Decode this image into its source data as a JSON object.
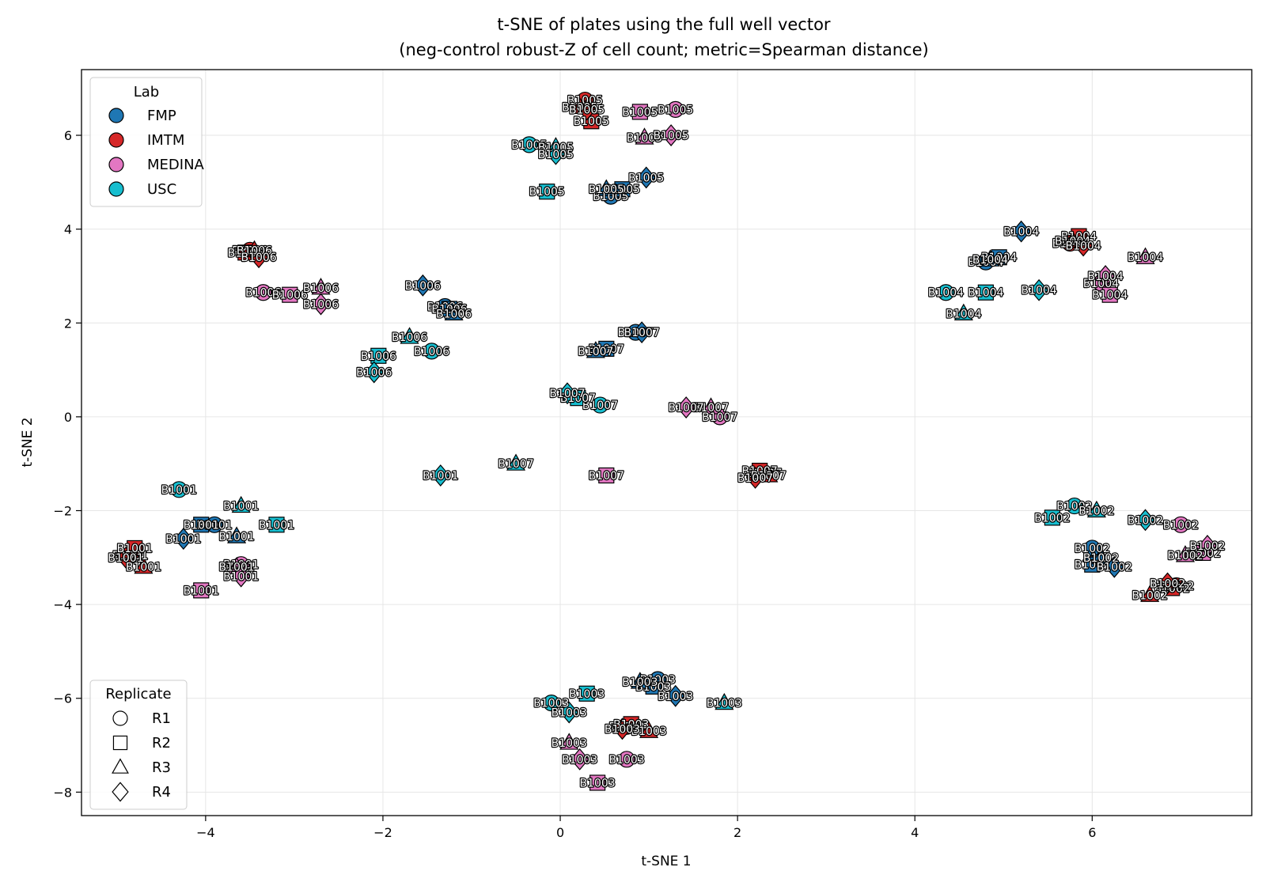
{
  "chart_data": {
    "type": "scatter",
    "title": "t-SNE of plates using the full well vector",
    "subtitle": "(neg-control robust-Z of cell count; metric=Spearman distance)",
    "xlabel": "t-SNE 1",
    "ylabel": "t-SNE 2",
    "xlim": [
      -5.4,
      7.8
    ],
    "ylim": [
      -8.5,
      7.4
    ],
    "xticks": [
      -4,
      -2,
      0,
      2,
      4,
      6
    ],
    "yticks": [
      -8,
      -6,
      -4,
      -2,
      0,
      2,
      4,
      6
    ],
    "grid": true,
    "lab_legend": {
      "title": "Lab",
      "placement": "upper-left",
      "entries": [
        {
          "name": "FMP",
          "color": "#1f77b4"
        },
        {
          "name": "IMTM",
          "color": "#d62728"
        },
        {
          "name": "MEDINA",
          "color": "#e377c2"
        },
        {
          "name": "USC",
          "color": "#17becf"
        }
      ]
    },
    "replicate_legend": {
      "title": "Replicate",
      "placement": "lower-left",
      "entries": [
        {
          "name": "R1",
          "marker": "circle"
        },
        {
          "name": "R2",
          "marker": "square"
        },
        {
          "name": "R3",
          "marker": "triangle"
        },
        {
          "name": "R4",
          "marker": "diamond"
        }
      ]
    },
    "points": [
      {
        "label": "B1005",
        "lab": "IMTM",
        "rep": "R1",
        "x": 0.28,
        "y": 6.75
      },
      {
        "label": "B1005",
        "lab": "IMTM",
        "rep": "R2",
        "x": 0.35,
        "y": 6.3
      },
      {
        "label": "B1005",
        "lab": "IMTM",
        "rep": "R3",
        "x": 0.22,
        "y": 6.6
      },
      {
        "label": "B1005",
        "lab": "IMTM",
        "rep": "R4",
        "x": 0.3,
        "y": 6.55
      },
      {
        "label": "B1005",
        "lab": "MEDINA",
        "rep": "R1",
        "x": 1.3,
        "y": 6.55
      },
      {
        "label": "B1005",
        "lab": "MEDINA",
        "rep": "R2",
        "x": 0.9,
        "y": 6.5
      },
      {
        "label": "B1005",
        "lab": "MEDINA",
        "rep": "R3",
        "x": 0.95,
        "y": 5.95
      },
      {
        "label": "B1005",
        "lab": "MEDINA",
        "rep": "R4",
        "x": 1.25,
        "y": 6.0
      },
      {
        "label": "B1005",
        "lab": "USC",
        "rep": "R1",
        "x": -0.35,
        "y": 5.8
      },
      {
        "label": "B1005",
        "lab": "USC",
        "rep": "R2",
        "x": -0.15,
        "y": 4.8
      },
      {
        "label": "B1005",
        "lab": "USC",
        "rep": "R3",
        "x": -0.05,
        "y": 5.75
      },
      {
        "label": "B1005",
        "lab": "USC",
        "rep": "R4",
        "x": -0.05,
        "y": 5.6
      },
      {
        "label": "B1005",
        "lab": "FMP",
        "rep": "R1",
        "x": 0.57,
        "y": 4.7
      },
      {
        "label": "B1005",
        "lab": "FMP",
        "rep": "R2",
        "x": 0.7,
        "y": 4.85
      },
      {
        "label": "B1005",
        "lab": "FMP",
        "rep": "R3",
        "x": 0.52,
        "y": 4.85
      },
      {
        "label": "B1005",
        "lab": "FMP",
        "rep": "R4",
        "x": 0.97,
        "y": 5.1
      },
      {
        "label": "B1004",
        "lab": "FMP",
        "rep": "R1",
        "x": 4.8,
        "y": 3.3
      },
      {
        "label": "B1004",
        "lab": "FMP",
        "rep": "R2",
        "x": 4.95,
        "y": 3.4
      },
      {
        "label": "B1004",
        "lab": "FMP",
        "rep": "R3",
        "x": 4.85,
        "y": 3.35
      },
      {
        "label": "B1004",
        "lab": "FMP",
        "rep": "R4",
        "x": 5.2,
        "y": 3.95
      },
      {
        "label": "B1004",
        "lab": "IMTM",
        "rep": "R1",
        "x": 5.75,
        "y": 3.7
      },
      {
        "label": "B1004",
        "lab": "IMTM",
        "rep": "R2",
        "x": 5.85,
        "y": 3.85
      },
      {
        "label": "B1004",
        "lab": "IMTM",
        "rep": "R3",
        "x": 5.78,
        "y": 3.75
      },
      {
        "label": "B1004",
        "lab": "IMTM",
        "rep": "R4",
        "x": 5.9,
        "y": 3.65
      },
      {
        "label": "B1004",
        "lab": "MEDINA",
        "rep": "R1",
        "x": 6.1,
        "y": 2.85
      },
      {
        "label": "B1004",
        "lab": "MEDINA",
        "rep": "R2",
        "x": 6.2,
        "y": 2.6
      },
      {
        "label": "B1004",
        "lab": "MEDINA",
        "rep": "R3",
        "x": 6.6,
        "y": 3.4
      },
      {
        "label": "B1004",
        "lab": "MEDINA",
        "rep": "R4",
        "x": 6.15,
        "y": 3.0
      },
      {
        "label": "B1004",
        "lab": "USC",
        "rep": "R1",
        "x": 4.35,
        "y": 2.65
      },
      {
        "label": "B1004",
        "lab": "USC",
        "rep": "R2",
        "x": 4.8,
        "y": 2.65
      },
      {
        "label": "B1004",
        "lab": "USC",
        "rep": "R3",
        "x": 4.55,
        "y": 2.2
      },
      {
        "label": "B1004",
        "lab": "USC",
        "rep": "R4",
        "x": 5.4,
        "y": 2.7
      },
      {
        "label": "B1006",
        "lab": "IMTM",
        "rep": "R1",
        "x": -3.5,
        "y": 3.55
      },
      {
        "label": "B1006",
        "lab": "IMTM",
        "rep": "R2",
        "x": -3.55,
        "y": 3.5
      },
      {
        "label": "B1006",
        "lab": "IMTM",
        "rep": "R3",
        "x": -3.45,
        "y": 3.55
      },
      {
        "label": "B1006",
        "lab": "IMTM",
        "rep": "R4",
        "x": -3.4,
        "y": 3.4
      },
      {
        "label": "B1006",
        "lab": "MEDINA",
        "rep": "R1",
        "x": -3.35,
        "y": 2.65
      },
      {
        "label": "B1006",
        "lab": "MEDINA",
        "rep": "R2",
        "x": -3.05,
        "y": 2.6
      },
      {
        "label": "B1006",
        "lab": "MEDINA",
        "rep": "R3",
        "x": -2.7,
        "y": 2.75
      },
      {
        "label": "B1006",
        "lab": "MEDINA",
        "rep": "R4",
        "x": -2.7,
        "y": 2.4
      },
      {
        "label": "B1006",
        "lab": "FMP",
        "rep": "R1",
        "x": -1.3,
        "y": 2.35
      },
      {
        "label": "B1006",
        "lab": "FMP",
        "rep": "R2",
        "x": -1.25,
        "y": 2.3
      },
      {
        "label": "B1006",
        "lab": "FMP",
        "rep": "R3",
        "x": -1.2,
        "y": 2.2
      },
      {
        "label": "B1006",
        "lab": "FMP",
        "rep": "R4",
        "x": -1.55,
        "y": 2.8
      },
      {
        "label": "B1006",
        "lab": "USC",
        "rep": "R1",
        "x": -1.45,
        "y": 1.4
      },
      {
        "label": "B1006",
        "lab": "USC",
        "rep": "R2",
        "x": -2.05,
        "y": 1.3
      },
      {
        "label": "B1006",
        "lab": "USC",
        "rep": "R3",
        "x": -1.7,
        "y": 1.7
      },
      {
        "label": "B1006",
        "lab": "USC",
        "rep": "R4",
        "x": -2.1,
        "y": 0.95
      },
      {
        "label": "B1007",
        "lab": "FMP",
        "rep": "R1",
        "x": 0.85,
        "y": 1.8
      },
      {
        "label": "B1007",
        "lab": "FMP",
        "rep": "R2",
        "x": 0.52,
        "y": 1.45
      },
      {
        "label": "B1007",
        "lab": "FMP",
        "rep": "R3",
        "x": 0.4,
        "y": 1.4
      },
      {
        "label": "B1007",
        "lab": "FMP",
        "rep": "R4",
        "x": 0.92,
        "y": 1.8
      },
      {
        "label": "B1007",
        "lab": "USC",
        "rep": "R1",
        "x": 0.45,
        "y": 0.25
      },
      {
        "label": "B1007",
        "lab": "USC",
        "rep": "R2",
        "x": 0.2,
        "y": 0.4
      },
      {
        "label": "B1007",
        "lab": "USC",
        "rep": "R3",
        "x": -0.5,
        "y": -1.0
      },
      {
        "label": "B1007",
        "lab": "USC",
        "rep": "R4",
        "x": 0.08,
        "y": 0.5
      },
      {
        "label": "B1007",
        "lab": "MEDINA",
        "rep": "R1",
        "x": 1.8,
        "y": 0.0
      },
      {
        "label": "B1007",
        "lab": "MEDINA",
        "rep": "R2",
        "x": 0.52,
        "y": -1.25
      },
      {
        "label": "B1007",
        "lab": "MEDINA",
        "rep": "R3",
        "x": 1.7,
        "y": 0.2
      },
      {
        "label": "B1007",
        "lab": "MEDINA",
        "rep": "R4",
        "x": 1.42,
        "y": 0.2
      },
      {
        "label": "B1007",
        "lab": "IMTM",
        "rep": "R1",
        "x": 2.3,
        "y": -1.2
      },
      {
        "label": "B1007",
        "lab": "IMTM",
        "rep": "R2",
        "x": 2.25,
        "y": -1.15
      },
      {
        "label": "B1007",
        "lab": "IMTM",
        "rep": "R3",
        "x": 2.35,
        "y": -1.25
      },
      {
        "label": "B1007",
        "lab": "IMTM",
        "rep": "R4",
        "x": 2.2,
        "y": -1.3
      },
      {
        "label": "B1001",
        "lab": "USC",
        "rep": "R1",
        "x": -4.3,
        "y": -1.55
      },
      {
        "label": "B1001",
        "lab": "USC",
        "rep": "R2",
        "x": -3.2,
        "y": -2.3
      },
      {
        "label": "B1001",
        "lab": "USC",
        "rep": "R3",
        "x": -3.6,
        "y": -1.9
      },
      {
        "label": "B1001",
        "lab": "USC",
        "rep": "R4",
        "x": -1.35,
        "y": -1.25
      },
      {
        "label": "B1001",
        "lab": "FMP",
        "rep": "R1",
        "x": -3.9,
        "y": -2.3
      },
      {
        "label": "B1001",
        "lab": "FMP",
        "rep": "R2",
        "x": -4.05,
        "y": -2.3
      },
      {
        "label": "B1001",
        "lab": "FMP",
        "rep": "R3",
        "x": -3.65,
        "y": -2.55
      },
      {
        "label": "B1001",
        "lab": "FMP",
        "rep": "R4",
        "x": -4.25,
        "y": -2.6
      },
      {
        "label": "B1001",
        "lab": "IMTM",
        "rep": "R1",
        "x": -4.85,
        "y": -2.95
      },
      {
        "label": "B1001",
        "lab": "IMTM",
        "rep": "R2",
        "x": -4.8,
        "y": -2.8
      },
      {
        "label": "B1001",
        "lab": "IMTM",
        "rep": "R3",
        "x": -4.7,
        "y": -3.2
      },
      {
        "label": "B1001",
        "lab": "IMTM",
        "rep": "R4",
        "x": -4.9,
        "y": -3.0
      },
      {
        "label": "B1001",
        "lab": "MEDINA",
        "rep": "R1",
        "x": -3.6,
        "y": -3.15
      },
      {
        "label": "B1001",
        "lab": "MEDINA",
        "rep": "R2",
        "x": -4.05,
        "y": -3.7
      },
      {
        "label": "B1001",
        "lab": "MEDINA",
        "rep": "R3",
        "x": -3.65,
        "y": -3.2
      },
      {
        "label": "B1001",
        "lab": "MEDINA",
        "rep": "R4",
        "x": -3.6,
        "y": -3.4
      },
      {
        "label": "B1002",
        "lab": "USC",
        "rep": "R1",
        "x": 5.8,
        "y": -1.9
      },
      {
        "label": "B1002",
        "lab": "USC",
        "rep": "R2",
        "x": 5.55,
        "y": -2.15
      },
      {
        "label": "B1002",
        "lab": "USC",
        "rep": "R3",
        "x": 6.05,
        "y": -2.0
      },
      {
        "label": "B1002",
        "lab": "USC",
        "rep": "R4",
        "x": 6.6,
        "y": -2.2
      },
      {
        "label": "B1002",
        "lab": "MEDINA",
        "rep": "R1",
        "x": 7.0,
        "y": -2.3
      },
      {
        "label": "B1002",
        "lab": "MEDINA",
        "rep": "R2",
        "x": 7.25,
        "y": -2.9
      },
      {
        "label": "B1002",
        "lab": "MEDINA",
        "rep": "R3",
        "x": 7.05,
        "y": -2.95
      },
      {
        "label": "B1002",
        "lab": "MEDINA",
        "rep": "R4",
        "x": 7.3,
        "y": -2.75
      },
      {
        "label": "B1002",
        "lab": "FMP",
        "rep": "R1",
        "x": 6.0,
        "y": -2.8
      },
      {
        "label": "B1002",
        "lab": "FMP",
        "rep": "R2",
        "x": 6.0,
        "y": -3.15
      },
      {
        "label": "B1002",
        "lab": "FMP",
        "rep": "R3",
        "x": 6.1,
        "y": -3.0
      },
      {
        "label": "B1002",
        "lab": "FMP",
        "rep": "R4",
        "x": 6.25,
        "y": -3.2
      },
      {
        "label": "B1002",
        "lab": "IMTM",
        "rep": "R1",
        "x": 6.95,
        "y": -3.6
      },
      {
        "label": "B1002",
        "lab": "IMTM",
        "rep": "R2",
        "x": 6.9,
        "y": -3.65
      },
      {
        "label": "B1002",
        "lab": "IMTM",
        "rep": "R3",
        "x": 6.65,
        "y": -3.8
      },
      {
        "label": "B1002",
        "lab": "IMTM",
        "rep": "R4",
        "x": 6.85,
        "y": -3.55
      },
      {
        "label": "B1003",
        "lab": "FMP",
        "rep": "R1",
        "x": 1.1,
        "y": -5.6
      },
      {
        "label": "B1003",
        "lab": "FMP",
        "rep": "R2",
        "x": 1.05,
        "y": -5.75
      },
      {
        "label": "B1003",
        "lab": "FMP",
        "rep": "R3",
        "x": 0.9,
        "y": -5.65
      },
      {
        "label": "B1003",
        "lab": "FMP",
        "rep": "R4",
        "x": 1.3,
        "y": -5.95
      },
      {
        "label": "B1003",
        "lab": "USC",
        "rep": "R1",
        "x": -0.1,
        "y": -6.1
      },
      {
        "label": "B1003",
        "lab": "USC",
        "rep": "R2",
        "x": 0.3,
        "y": -5.9
      },
      {
        "label": "B1003",
        "lab": "USC",
        "rep": "R3",
        "x": 1.85,
        "y": -6.1
      },
      {
        "label": "B1003",
        "lab": "USC",
        "rep": "R4",
        "x": 0.1,
        "y": -6.3
      },
      {
        "label": "B1003",
        "lab": "IMTM",
        "rep": "R1",
        "x": 0.75,
        "y": -6.6
      },
      {
        "label": "B1003",
        "lab": "IMTM",
        "rep": "R2",
        "x": 0.8,
        "y": -6.55
      },
      {
        "label": "B1003",
        "lab": "IMTM",
        "rep": "R3",
        "x": 1.0,
        "y": -6.7
      },
      {
        "label": "B1003",
        "lab": "IMTM",
        "rep": "R4",
        "x": 0.7,
        "y": -6.65
      },
      {
        "label": "B1003",
        "lab": "MEDINA",
        "rep": "R1",
        "x": 0.75,
        "y": -7.3
      },
      {
        "label": "B1003",
        "lab": "MEDINA",
        "rep": "R2",
        "x": 0.42,
        "y": -7.8
      },
      {
        "label": "B1003",
        "lab": "MEDINA",
        "rep": "R3",
        "x": 0.1,
        "y": -6.95
      },
      {
        "label": "B1003",
        "lab": "MEDINA",
        "rep": "R4",
        "x": 0.22,
        "y": -7.3
      }
    ]
  }
}
